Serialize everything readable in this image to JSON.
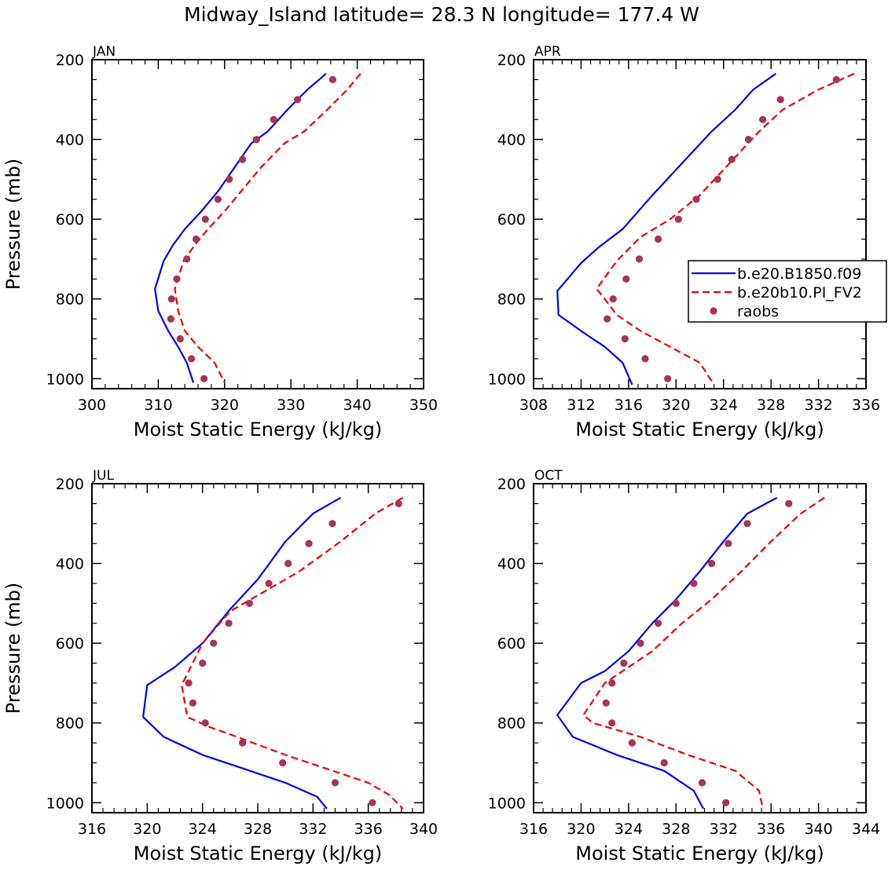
{
  "title": "Midway_Island  latitude= 28.3 N longitude= 177.4 W",
  "colors": {
    "model1": "#0000ee",
    "model2": "#ee0000",
    "obs": "#a8325a",
    "axis": "#000000"
  },
  "legend": {
    "entries": [
      {
        "label": "b.e20.B1850.f09",
        "style": "solid",
        "color": "#0000ee"
      },
      {
        "label": "b.e20b10.PI_FV2",
        "style": "dashed",
        "color": "#ee0000"
      },
      {
        "label": "raobs",
        "style": "marker",
        "color": "#a8325a"
      }
    ]
  },
  "chart_data": [
    {
      "type": "line",
      "panel": "JAN",
      "xlabel": "Moist Static Energy (kJ/kg)",
      "ylabel": "Pressure (mb)",
      "xlim": [
        300,
        350
      ],
      "ylim": [
        200,
        1025
      ],
      "xticks": [
        300,
        310,
        320,
        330,
        340,
        350
      ],
      "yticks": [
        200,
        400,
        600,
        800,
        1000
      ],
      "series": [
        {
          "name": "b.e20.B1850.f09",
          "x": [
            335.3,
            332.5,
            329.5,
            326.5,
            324.0,
            321.5,
            319.0,
            316.5,
            314.0,
            312.2,
            310.8,
            309.5,
            310.0,
            311.5,
            313.0,
            314.3,
            315.3
          ],
          "y": [
            235,
            275,
            325,
            380,
            410,
            470,
            530,
            580,
            625,
            665,
            705,
            775,
            830,
            880,
            920,
            960,
            1010
          ]
        },
        {
          "name": "b.e20b10.PI_FV2",
          "x": [
            340.5,
            338.5,
            335.5,
            332.0,
            329.0,
            325.5,
            322.5,
            320.0,
            317.5,
            315.5,
            313.8,
            312.5,
            313.0,
            314.0,
            316.0,
            318.5,
            320.0
          ],
          "y": [
            235,
            275,
            325,
            380,
            410,
            470,
            530,
            580,
            625,
            665,
            705,
            775,
            830,
            880,
            920,
            960,
            1010
          ]
        },
        {
          "name": "raobs",
          "x": [
            336.3,
            331.0,
            327.4,
            324.8,
            322.7,
            320.7,
            319.0,
            317.1,
            315.7,
            314.3,
            312.8,
            312.0,
            311.9,
            313.3,
            315.0,
            316.9
          ],
          "y": [
            250,
            300,
            350,
            400,
            450,
            500,
            550,
            600,
            650,
            700,
            750,
            800,
            850,
            900,
            950,
            1000
          ]
        }
      ]
    },
    {
      "type": "line",
      "panel": "APR",
      "xlabel": "Moist Static Energy (kJ/kg)",
      "ylabel": "",
      "xlim": [
        308,
        336
      ],
      "ylim": [
        200,
        1025
      ],
      "xticks": [
        308,
        312,
        316,
        320,
        324,
        328,
        332,
        336
      ],
      "yticks": [
        200,
        400,
        600,
        800,
        1000
      ],
      "series": [
        {
          "name": "b.e20.B1850.f09",
          "x": [
            328.4,
            326.5,
            325.0,
            323.0,
            320.5,
            318.0,
            315.5,
            313.5,
            312.0,
            310.0,
            310.1,
            312.0,
            314.0,
            315.5,
            316.3
          ],
          "y": [
            235,
            275,
            325,
            380,
            460,
            540,
            625,
            670,
            710,
            780,
            840,
            880,
            920,
            960,
            1015
          ]
        },
        {
          "name": "b.e20b10.PI_FV2",
          "x": [
            335.0,
            332.0,
            329.0,
            327.0,
            324.5,
            322.0,
            319.5,
            317.0,
            315.0,
            313.3,
            314.0,
            315.0,
            317.0,
            319.5,
            322.0,
            323.2
          ],
          "y": [
            235,
            275,
            325,
            380,
            460,
            540,
            600,
            645,
            705,
            775,
            800,
            840,
            880,
            920,
            960,
            1015
          ]
        },
        {
          "name": "raobs",
          "x": [
            333.5,
            328.8,
            327.3,
            326.1,
            324.7,
            323.5,
            321.7,
            320.2,
            318.5,
            316.9,
            315.8,
            314.7,
            314.2,
            315.7,
            317.4,
            319.3
          ],
          "y": [
            250,
            300,
            350,
            400,
            450,
            500,
            550,
            600,
            650,
            700,
            750,
            800,
            850,
            900,
            950,
            1000
          ]
        }
      ]
    },
    {
      "type": "line",
      "panel": "JUL",
      "xlabel": "Moist Static Energy (kJ/kg)",
      "ylabel": "Pressure (mb)",
      "xlim": [
        316,
        340
      ],
      "ylim": [
        200,
        1025
      ],
      "xticks": [
        316,
        320,
        324,
        328,
        332,
        336,
        340
      ],
      "yticks": [
        200,
        400,
        600,
        800,
        1000
      ],
      "series": [
        {
          "name": "b.e20.B1850.f09",
          "x": [
            334.0,
            332.0,
            330.0,
            328.0,
            326.0,
            324.0,
            322.0,
            320.0,
            319.7,
            321.2,
            324.0,
            327.0,
            330.0,
            332.3,
            333.0
          ],
          "y": [
            235,
            275,
            345,
            440,
            515,
            600,
            660,
            705,
            785,
            835,
            880,
            915,
            950,
            985,
            1015
          ]
        },
        {
          "name": "b.e20b10.PI_FV2",
          "x": [
            338.5,
            336.5,
            334.0,
            331.0,
            328.0,
            326.0,
            324.0,
            322.5,
            322.9,
            324.5,
            326.5,
            330.0,
            333.0,
            336.0,
            337.5,
            338.5
          ],
          "y": [
            235,
            275,
            345,
            420,
            480,
            520,
            600,
            705,
            785,
            810,
            835,
            880,
            915,
            950,
            980,
            1015
          ]
        },
        {
          "name": "raobs",
          "x": [
            338.2,
            333.4,
            331.7,
            330.2,
            328.8,
            327.4,
            325.9,
            324.8,
            324.0,
            323.0,
            323.3,
            324.2,
            326.9,
            329.8,
            333.6,
            336.3
          ],
          "y": [
            250,
            300,
            350,
            400,
            450,
            500,
            550,
            600,
            650,
            700,
            750,
            800,
            850,
            900,
            950,
            1000
          ]
        }
      ]
    },
    {
      "type": "line",
      "panel": "OCT",
      "xlabel": "Moist Static Energy (kJ/kg)",
      "ylabel": "",
      "xlim": [
        316,
        344
      ],
      "ylim": [
        200,
        1025
      ],
      "xticks": [
        316,
        320,
        324,
        328,
        332,
        336,
        340,
        344
      ],
      "yticks": [
        200,
        400,
        600,
        800,
        1000
      ],
      "series": [
        {
          "name": "b.e20.B1850.f09",
          "x": [
            336.5,
            334.0,
            332.0,
            330.0,
            328.0,
            326.0,
            324.0,
            322.0,
            320.0,
            318.0,
            319.3,
            323.0,
            327.0,
            329.5,
            330.3
          ],
          "y": [
            235,
            275,
            345,
            420,
            490,
            550,
            620,
            670,
            700,
            780,
            835,
            880,
            920,
            970,
            1015
          ]
        },
        {
          "name": "b.e20b10.PI_FV2",
          "x": [
            340.5,
            338.5,
            336.0,
            333.5,
            331.0,
            328.5,
            326.0,
            324.0,
            322.0,
            320.2,
            321.0,
            325.0,
            329.0,
            333.0,
            335.0,
            335.3
          ],
          "y": [
            235,
            275,
            345,
            420,
            490,
            550,
            620,
            660,
            700,
            780,
            800,
            835,
            880,
            920,
            970,
            1015
          ]
        },
        {
          "name": "raobs",
          "x": [
            337.5,
            334.0,
            332.4,
            331.0,
            329.5,
            328.0,
            326.5,
            325.0,
            323.6,
            322.6,
            322.1,
            322.6,
            324.3,
            327.0,
            330.2,
            332.2
          ],
          "y": [
            250,
            300,
            350,
            400,
            450,
            500,
            550,
            600,
            650,
            700,
            750,
            800,
            850,
            900,
            950,
            1000
          ]
        }
      ]
    }
  ]
}
